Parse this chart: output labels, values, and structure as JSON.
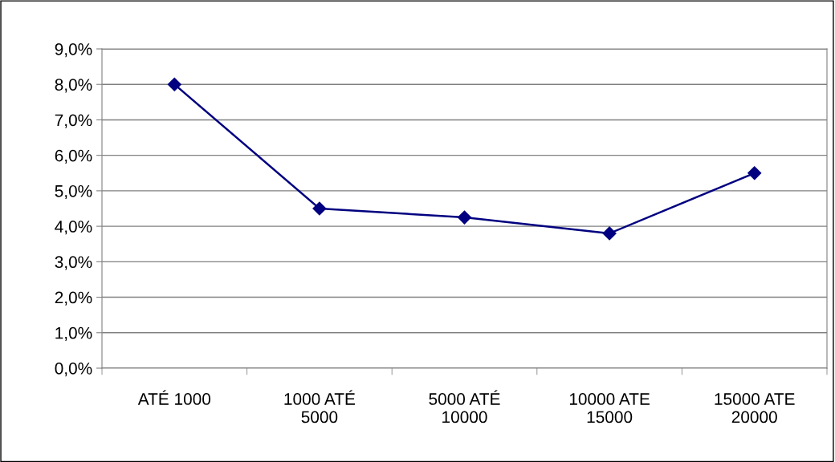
{
  "chart_data": {
    "type": "line",
    "categories": [
      "ATÉ 1000",
      "1000 ATÉ\n5000",
      "5000 ATÉ\n10000",
      "10000 ATE\n15000",
      "15000 ATE\n20000"
    ],
    "series": [
      {
        "color": "#000080",
        "values": [
          8.0,
          4.5,
          4.25,
          3.8,
          5.5
        ]
      }
    ],
    "ylim": [
      0,
      9
    ],
    "yticks": [
      {
        "value": 0,
        "label": "0,0%"
      },
      {
        "value": 1,
        "label": "1,0%"
      },
      {
        "value": 2,
        "label": "2,0%"
      },
      {
        "value": 3,
        "label": "3,0%"
      },
      {
        "value": 4,
        "label": "4,0%"
      },
      {
        "value": 5,
        "label": "5,0%"
      },
      {
        "value": 6,
        "label": "6,0%"
      },
      {
        "value": 7,
        "label": "7,0%"
      },
      {
        "value": 8,
        "label": "8,0%"
      },
      {
        "value": 9,
        "label": "9,0%"
      }
    ],
    "grid": "y",
    "marker": "diamond",
    "line_style": "solid",
    "legend": false
  }
}
